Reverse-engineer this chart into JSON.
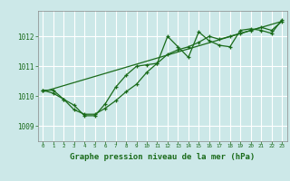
{
  "bg_color": "#cce8e8",
  "grid_color": "#ffffff",
  "line_color": "#1a6b1a",
  "marker_color": "#1a6b1a",
  "xlabel": "Graphe pression niveau de la mer (hPa)",
  "xlabel_fontsize": 6.5,
  "xlim": [
    -0.5,
    23.5
  ],
  "ylim": [
    1008.5,
    1012.85
  ],
  "yticks": [
    1009,
    1010,
    1011,
    1012
  ],
  "xticks": [
    0,
    1,
    2,
    3,
    4,
    5,
    6,
    7,
    8,
    9,
    10,
    11,
    12,
    13,
    14,
    15,
    16,
    17,
    18,
    19,
    20,
    21,
    22,
    23
  ],
  "line1_x": [
    0,
    1,
    2,
    3,
    4,
    5,
    6,
    7,
    8,
    9,
    10,
    11,
    12,
    13,
    14,
    15,
    16,
    17,
    18,
    19,
    20,
    21,
    22,
    23
  ],
  "line1_y": [
    1010.2,
    1010.2,
    1009.9,
    1009.7,
    1009.35,
    1009.35,
    1009.75,
    1010.3,
    1010.7,
    1011.0,
    1011.05,
    1011.1,
    1012.0,
    1011.65,
    1011.3,
    1012.15,
    1011.85,
    1011.7,
    1011.65,
    1012.2,
    1012.25,
    1012.2,
    1012.1,
    1012.55
  ],
  "line2_x": [
    0,
    1,
    2,
    3,
    4,
    5,
    6,
    7,
    8,
    9,
    10,
    11,
    12,
    13,
    14,
    15,
    16,
    17,
    18,
    19,
    20,
    21,
    22,
    23
  ],
  "line2_y": [
    1010.2,
    1010.1,
    1009.9,
    1009.55,
    1009.4,
    1009.4,
    1009.6,
    1009.85,
    1010.15,
    1010.4,
    1010.8,
    1011.1,
    1011.4,
    1011.55,
    1011.65,
    1011.8,
    1012.0,
    1011.9,
    1012.0,
    1012.1,
    1012.2,
    1012.3,
    1012.2,
    1012.5
  ],
  "line3_x": [
    0,
    23
  ],
  "line3_y": [
    1010.15,
    1012.5
  ]
}
